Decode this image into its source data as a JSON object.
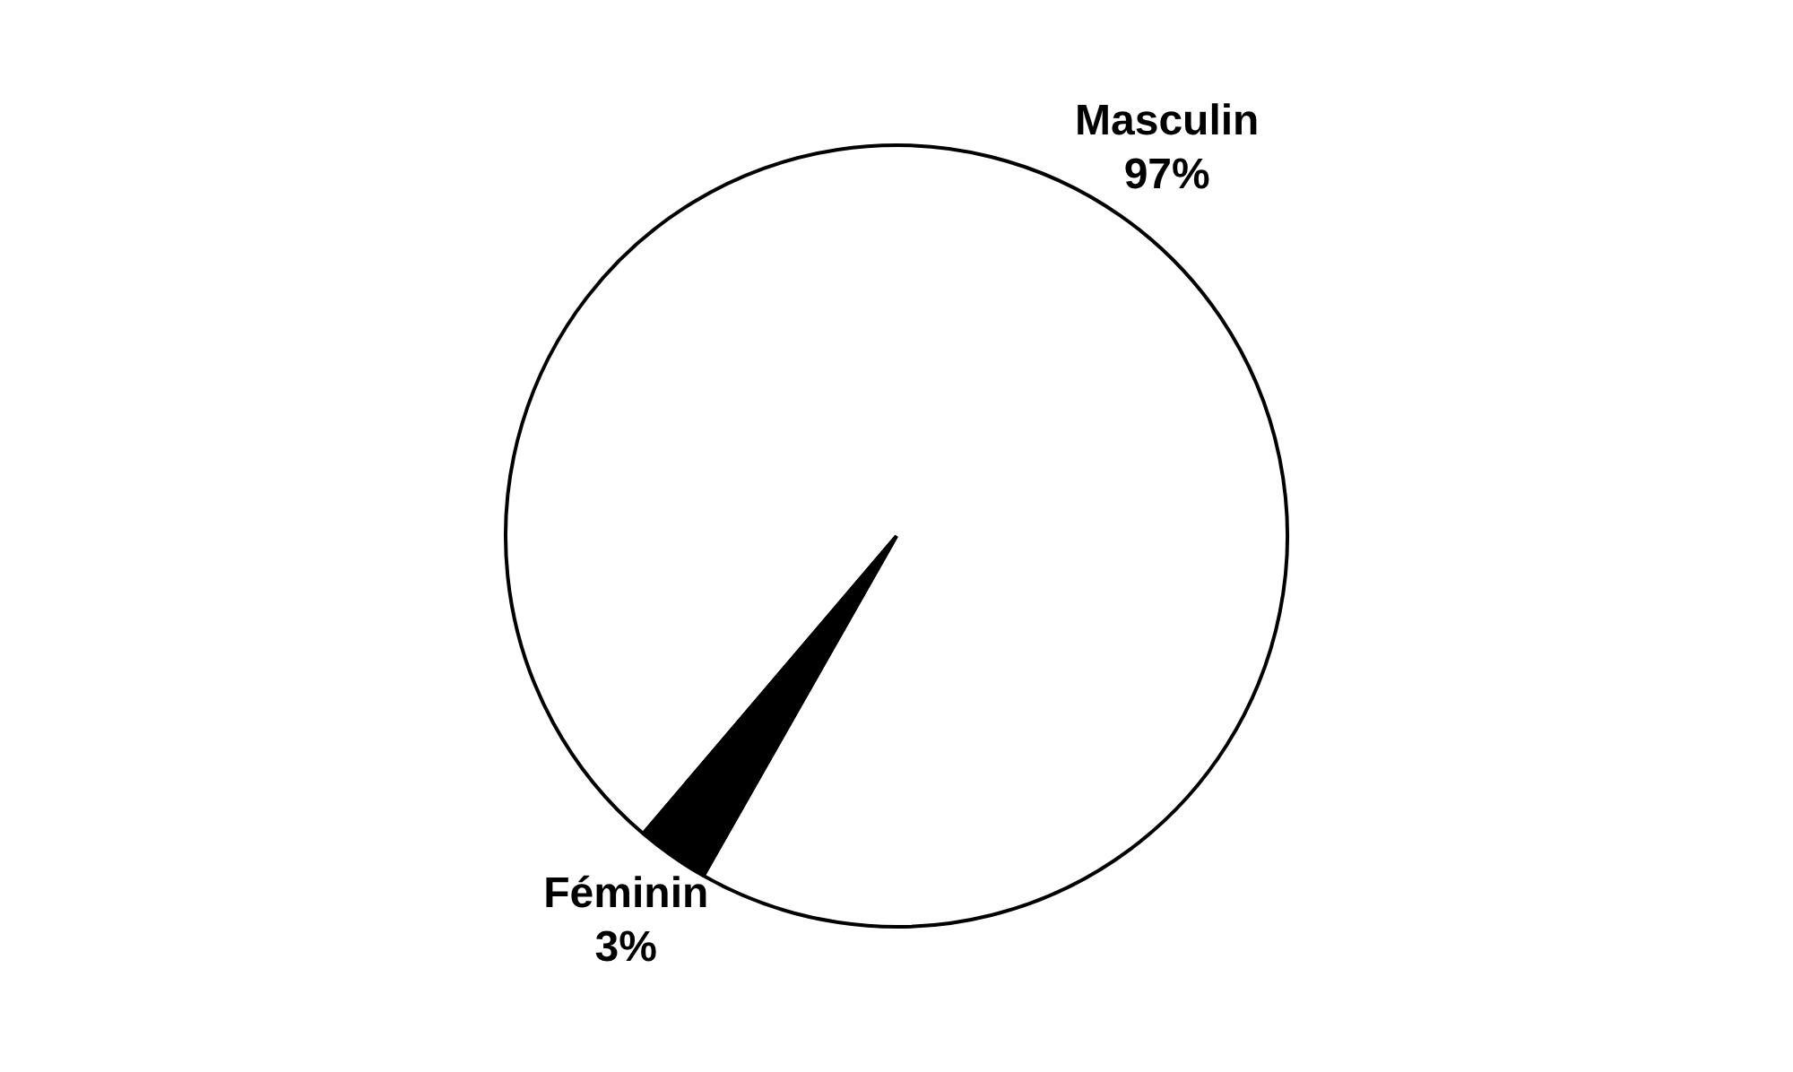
{
  "chart_data": {
    "type": "pie",
    "categories": [
      "Masculin",
      "Féminin"
    ],
    "values": [
      97,
      3
    ],
    "value_labels": [
      "97%",
      "3%"
    ],
    "colors": [
      "#ffffff",
      "#000000"
    ],
    "legend": false
  }
}
